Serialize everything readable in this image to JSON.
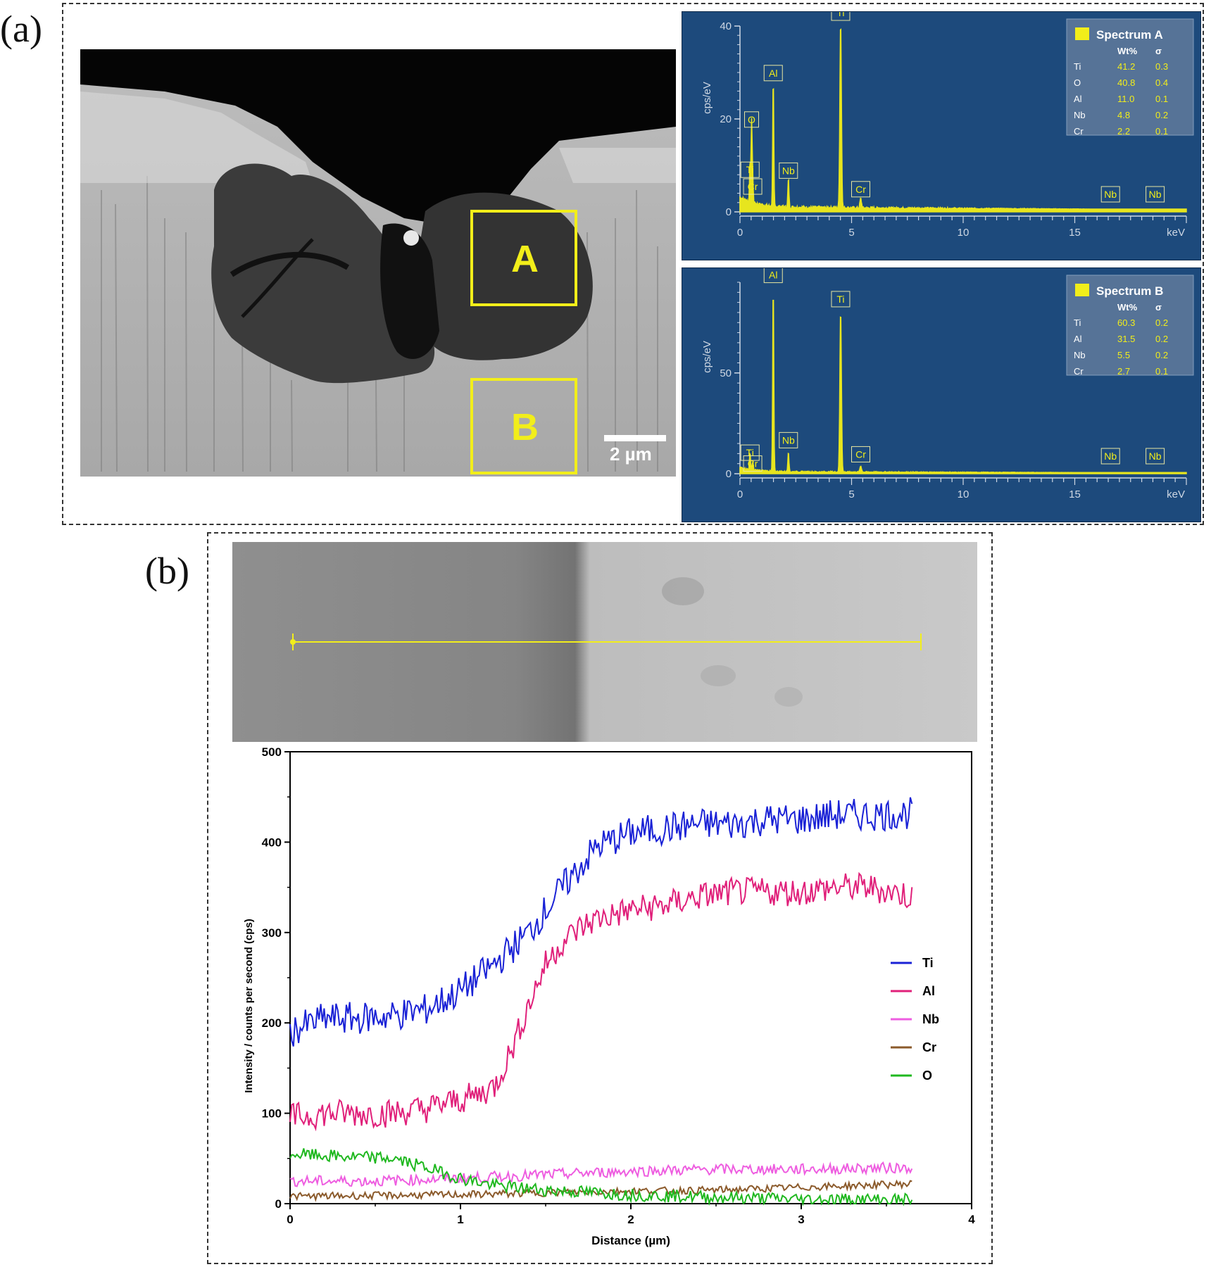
{
  "panel_a": {
    "label": "(a)",
    "sem": {
      "region_a_label": "A",
      "region_b_label": "B",
      "scale_bar_label": "2 µm"
    }
  },
  "panel_b": {
    "label": "(b)"
  },
  "colors": {
    "spectrum_bg": "#1d4a7c",
    "spectrum_line": "#f2ee1a",
    "Ti": "#1a22d6",
    "Al": "#e0207a",
    "Nb": "#ee5de0",
    "Cr": "#8b5a2b",
    "O": "#1fb81f"
  },
  "chart_data": [
    {
      "type": "line",
      "title": "Spectrum A",
      "xlabel": "keV",
      "ylabel": "cps/eV",
      "xlim": [
        0,
        20
      ],
      "ylim": [
        0,
        40
      ],
      "x_ticks": [
        0,
        5,
        10,
        15
      ],
      "y_ticks": [
        0,
        20,
        40
      ],
      "peaks": [
        {
          "element": "O",
          "x": 0.52,
          "y": 17
        },
        {
          "element": "Ti",
          "x": 0.45,
          "y": 8
        },
        {
          "element": "Cr",
          "x": 0.57,
          "y": 5
        },
        {
          "element": "Al",
          "x": 1.49,
          "y": 27
        },
        {
          "element": "Nb",
          "x": 2.17,
          "y": 6
        },
        {
          "element": "Ti",
          "x": 4.51,
          "y": 40
        },
        {
          "element": "Cr",
          "x": 5.41,
          "y": 2
        },
        {
          "element": "Nb",
          "x": 16.6,
          "y": 0
        },
        {
          "element": "Nb",
          "x": 18.6,
          "y": 0
        }
      ],
      "table": {
        "headers": [
          "",
          "Wt%",
          "σ"
        ],
        "rows": [
          [
            "Ti",
            "41.2",
            "0.3"
          ],
          [
            "O",
            "40.8",
            "0.4"
          ],
          [
            "Al",
            "11.0",
            "0.1"
          ],
          [
            "Nb",
            "4.8",
            "0.2"
          ],
          [
            "Cr",
            "2.2",
            "0.1"
          ]
        ]
      }
    },
    {
      "type": "line",
      "title": "Spectrum B",
      "xlabel": "keV",
      "ylabel": "cps/eV",
      "xlim": [
        0,
        20
      ],
      "ylim": [
        0,
        95
      ],
      "x_ticks": [
        0,
        5,
        10,
        15
      ],
      "y_ticks": [
        0,
        50
      ],
      "peaks": [
        {
          "element": "Al",
          "x": 1.49,
          "y": 92
        },
        {
          "element": "Ti",
          "x": 4.51,
          "y": 80
        },
        {
          "element": "Ti",
          "x": 0.45,
          "y": 8
        },
        {
          "element": "Cr",
          "x": 0.57,
          "y": 4
        },
        {
          "element": "Nb",
          "x": 2.17,
          "y": 10
        },
        {
          "element": "Cr",
          "x": 5.41,
          "y": 3
        },
        {
          "element": "Nb",
          "x": 16.6,
          "y": 0
        },
        {
          "element": "Nb",
          "x": 18.6,
          "y": 0
        }
      ],
      "table": {
        "headers": [
          "",
          "Wt%",
          "σ"
        ],
        "rows": [
          [
            "Ti",
            "60.3",
            "0.2"
          ],
          [
            "Al",
            "31.5",
            "0.2"
          ],
          [
            "Nb",
            "5.5",
            "0.2"
          ],
          [
            "Cr",
            "2.7",
            "0.1"
          ]
        ]
      }
    },
    {
      "type": "line",
      "xlabel": "Distance (µm)",
      "ylabel": "Intensity / counts per second (cps)",
      "xlim": [
        0,
        4
      ],
      "ylim": [
        0,
        500
      ],
      "x_ticks": [
        0,
        1,
        2,
        3,
        4
      ],
      "y_ticks": [
        0,
        100,
        200,
        300,
        400,
        500
      ],
      "legend_position": "right",
      "series": [
        {
          "name": "Ti",
          "x": [
            0,
            0.2,
            0.4,
            0.6,
            0.8,
            1.0,
            1.2,
            1.4,
            1.6,
            1.8,
            2.0,
            2.2,
            2.4,
            2.6,
            2.8,
            3.0,
            3.2,
            3.4,
            3.65
          ],
          "y": [
            190,
            205,
            205,
            208,
            215,
            235,
            265,
            300,
            350,
            395,
            410,
            415,
            420,
            420,
            425,
            425,
            430,
            430,
            432
          ]
        },
        {
          "name": "Al",
          "x": [
            0,
            0.2,
            0.4,
            0.6,
            0.8,
            1.0,
            1.1,
            1.2,
            1.3,
            1.4,
            1.5,
            1.6,
            1.7,
            1.8,
            2.0,
            2.2,
            2.4,
            2.6,
            2.8,
            3.0,
            3.2,
            3.4,
            3.65
          ],
          "y": [
            95,
            100,
            100,
            100,
            105,
            115,
            120,
            130,
            170,
            220,
            265,
            290,
            305,
            315,
            325,
            330,
            340,
            345,
            345,
            345,
            350,
            350,
            340
          ]
        },
        {
          "name": "Nb",
          "x": [
            0,
            0.5,
            1.0,
            1.5,
            2.0,
            2.5,
            3.0,
            3.65
          ],
          "y": [
            25,
            25,
            28,
            32,
            36,
            38,
            38,
            40
          ]
        },
        {
          "name": "Cr",
          "x": [
            0,
            0.5,
            1.0,
            1.5,
            2.0,
            2.5,
            3.0,
            3.65
          ],
          "y": [
            8,
            9,
            10,
            12,
            14,
            15,
            18,
            22
          ]
        },
        {
          "name": "O",
          "x": [
            0,
            0.3,
            0.6,
            0.8,
            1.0,
            1.2,
            1.5,
            2.0,
            2.5,
            3.0,
            3.65
          ],
          "y": [
            55,
            52,
            50,
            40,
            28,
            20,
            15,
            10,
            7,
            5,
            4
          ]
        }
      ]
    }
  ]
}
